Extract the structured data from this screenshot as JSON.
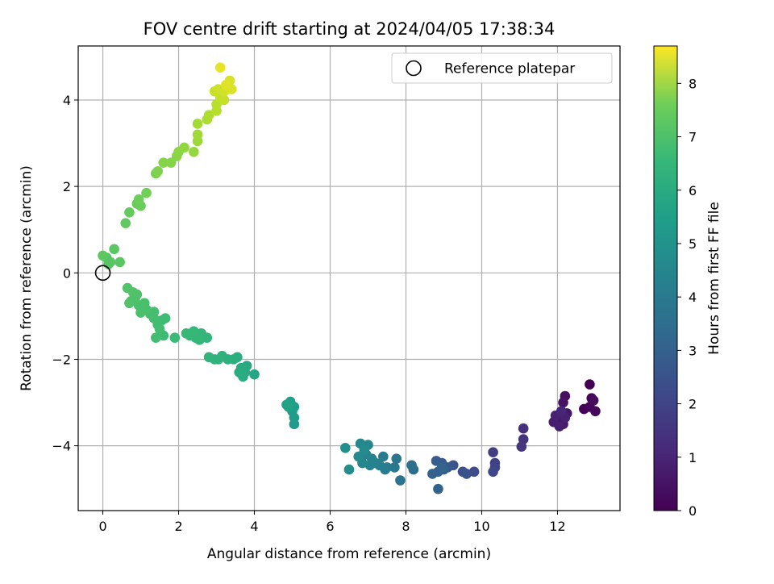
{
  "chart_data": {
    "type": "scatter",
    "title": "FOV centre drift starting at 2024/04/05 17:38:34",
    "xlabel": "Angular distance from reference (arcmin)",
    "ylabel": "Rotation from reference (arcmin)",
    "xlim": [
      -0.65,
      13.65
    ],
    "ylim": [
      -5.5,
      5.25
    ],
    "xticks": [
      "0",
      "2",
      "4",
      "6",
      "8",
      "10",
      "12"
    ],
    "yticks": [
      "−4",
      "−2",
      "0",
      "2",
      "4"
    ],
    "grid": true,
    "legend": {
      "position": "top-right",
      "entries": [
        {
          "label": "Reference platepar",
          "marker": "open-circle",
          "color": "#000000"
        }
      ]
    },
    "colorbar": {
      "label": "Hours from first FF file",
      "min": 0,
      "max": 8.7,
      "ticks": [
        "0",
        "1",
        "2",
        "3",
        "4",
        "5",
        "6",
        "7",
        "8"
      ],
      "colormap": "viridis"
    },
    "reference_point": {
      "x": 0,
      "y": 0
    },
    "points": [
      {
        "x": 12.85,
        "y": -2.58,
        "c": 0.0
      },
      {
        "x": 12.7,
        "y": -3.15,
        "c": 0.05
      },
      {
        "x": 12.9,
        "y": -2.9,
        "c": 0.1
      },
      {
        "x": 12.85,
        "y": -3.1,
        "c": 0.15
      },
      {
        "x": 13.0,
        "y": -3.2,
        "c": 0.2
      },
      {
        "x": 12.95,
        "y": -2.95,
        "c": 0.25
      },
      {
        "x": 12.2,
        "y": -2.85,
        "c": 0.4
      },
      {
        "x": 12.15,
        "y": -3.0,
        "c": 0.45
      },
      {
        "x": 12.25,
        "y": -3.25,
        "c": 0.5
      },
      {
        "x": 12.1,
        "y": -3.3,
        "c": 0.55
      },
      {
        "x": 12.0,
        "y": -3.4,
        "c": 0.6
      },
      {
        "x": 12.15,
        "y": -3.5,
        "c": 0.65
      },
      {
        "x": 11.9,
        "y": -3.45,
        "c": 0.7
      },
      {
        "x": 12.05,
        "y": -3.55,
        "c": 0.75
      },
      {
        "x": 12.2,
        "y": -3.35,
        "c": 0.8
      },
      {
        "x": 11.95,
        "y": -3.3,
        "c": 0.85
      },
      {
        "x": 12.1,
        "y": -3.2,
        "c": 0.9
      },
      {
        "x": 11.1,
        "y": -3.6,
        "c": 1.2
      },
      {
        "x": 11.1,
        "y": -3.85,
        "c": 1.3
      },
      {
        "x": 11.05,
        "y": -4.02,
        "c": 1.4
      },
      {
        "x": 10.3,
        "y": -4.15,
        "c": 1.6
      },
      {
        "x": 10.35,
        "y": -4.4,
        "c": 1.7
      },
      {
        "x": 10.35,
        "y": -4.5,
        "c": 1.8
      },
      {
        "x": 10.3,
        "y": -4.6,
        "c": 1.9
      },
      {
        "x": 9.8,
        "y": -4.6,
        "c": 2.05
      },
      {
        "x": 9.5,
        "y": -4.6,
        "c": 2.15
      },
      {
        "x": 9.6,
        "y": -4.65,
        "c": 2.2
      },
      {
        "x": 9.25,
        "y": -4.45,
        "c": 2.3
      },
      {
        "x": 9.1,
        "y": -4.5,
        "c": 2.4
      },
      {
        "x": 8.95,
        "y": -4.4,
        "c": 2.5
      },
      {
        "x": 8.8,
        "y": -4.35,
        "c": 2.55
      },
      {
        "x": 9.0,
        "y": -4.55,
        "c": 2.6
      },
      {
        "x": 8.85,
        "y": -4.6,
        "c": 2.65
      },
      {
        "x": 8.7,
        "y": -4.65,
        "c": 2.7
      },
      {
        "x": 8.85,
        "y": -5.0,
        "c": 2.75
      },
      {
        "x": 8.95,
        "y": -4.5,
        "c": 2.8
      },
      {
        "x": 8.2,
        "y": -4.55,
        "c": 3.1
      },
      {
        "x": 8.15,
        "y": -4.45,
        "c": 3.15
      },
      {
        "x": 7.85,
        "y": -4.8,
        "c": 3.3
      },
      {
        "x": 7.75,
        "y": -4.3,
        "c": 3.4
      },
      {
        "x": 7.7,
        "y": -4.5,
        "c": 3.45
      },
      {
        "x": 7.5,
        "y": -4.5,
        "c": 3.6
      },
      {
        "x": 7.4,
        "y": -4.25,
        "c": 3.65
      },
      {
        "x": 7.45,
        "y": -4.55,
        "c": 3.7
      },
      {
        "x": 7.3,
        "y": -4.45,
        "c": 3.75
      },
      {
        "x": 7.2,
        "y": -4.4,
        "c": 3.8
      },
      {
        "x": 7.05,
        "y": -4.45,
        "c": 3.85
      },
      {
        "x": 7.1,
        "y": -4.3,
        "c": 3.9
      },
      {
        "x": 6.95,
        "y": -4.2,
        "c": 3.95
      },
      {
        "x": 6.85,
        "y": -4.4,
        "c": 4.0
      },
      {
        "x": 7.0,
        "y": -3.98,
        "c": 4.05
      },
      {
        "x": 6.8,
        "y": -3.95,
        "c": 4.1
      },
      {
        "x": 6.75,
        "y": -4.25,
        "c": 4.15
      },
      {
        "x": 6.9,
        "y": -4.1,
        "c": 4.2
      },
      {
        "x": 6.5,
        "y": -4.55,
        "c": 4.25
      },
      {
        "x": 6.4,
        "y": -4.05,
        "c": 4.3
      },
      {
        "x": 5.05,
        "y": -3.5,
        "c": 4.7
      },
      {
        "x": 5.05,
        "y": -3.35,
        "c": 4.75
      },
      {
        "x": 5.0,
        "y": -3.2,
        "c": 4.8
      },
      {
        "x": 5.05,
        "y": -3.1,
        "c": 4.85
      },
      {
        "x": 4.95,
        "y": -2.98,
        "c": 4.9
      },
      {
        "x": 4.9,
        "y": -3.1,
        "c": 4.95
      },
      {
        "x": 4.85,
        "y": -3.05,
        "c": 5.0
      },
      {
        "x": 4.0,
        "y": -2.35,
        "c": 5.15
      },
      {
        "x": 3.8,
        "y": -2.15,
        "c": 5.2
      },
      {
        "x": 3.75,
        "y": -2.3,
        "c": 5.25
      },
      {
        "x": 3.65,
        "y": -2.2,
        "c": 5.3
      },
      {
        "x": 3.6,
        "y": -2.3,
        "c": 5.35
      },
      {
        "x": 3.7,
        "y": -2.4,
        "c": 5.38
      },
      {
        "x": 3.55,
        "y": -1.95,
        "c": 5.4
      },
      {
        "x": 3.45,
        "y": -2.0,
        "c": 5.45
      },
      {
        "x": 3.3,
        "y": -2.0,
        "c": 5.5
      },
      {
        "x": 3.15,
        "y": -1.92,
        "c": 5.55
      },
      {
        "x": 3.05,
        "y": -2.0,
        "c": 5.6
      },
      {
        "x": 2.95,
        "y": -2.0,
        "c": 5.62
      },
      {
        "x": 2.8,
        "y": -1.95,
        "c": 5.65
      },
      {
        "x": 2.75,
        "y": -1.5,
        "c": 5.7
      },
      {
        "x": 2.6,
        "y": -1.4,
        "c": 5.72
      },
      {
        "x": 2.55,
        "y": -1.55,
        "c": 5.75
      },
      {
        "x": 2.45,
        "y": -1.5,
        "c": 5.78
      },
      {
        "x": 2.4,
        "y": -1.35,
        "c": 5.8
      },
      {
        "x": 2.3,
        "y": -1.45,
        "c": 5.82
      },
      {
        "x": 2.2,
        "y": -1.4,
        "c": 5.85
      },
      {
        "x": 1.9,
        "y": -1.5,
        "c": 5.9
      },
      {
        "x": 1.6,
        "y": -1.45,
        "c": 5.93
      },
      {
        "x": 1.65,
        "y": -1.05,
        "c": 5.95
      },
      {
        "x": 1.55,
        "y": -1.1,
        "c": 5.97
      },
      {
        "x": 1.45,
        "y": -1.2,
        "c": 6.0
      },
      {
        "x": 1.4,
        "y": -1.5,
        "c": 6.02
      },
      {
        "x": 1.5,
        "y": -1.3,
        "c": 6.04
      },
      {
        "x": 1.35,
        "y": -1.05,
        "c": 6.06
      },
      {
        "x": 1.35,
        "y": -0.9,
        "c": 6.08
      },
      {
        "x": 1.25,
        "y": -0.95,
        "c": 6.1
      },
      {
        "x": 1.15,
        "y": -0.85,
        "c": 6.12
      },
      {
        "x": 1.1,
        "y": -0.7,
        "c": 6.14
      },
      {
        "x": 1.0,
        "y": -0.92,
        "c": 6.16
      },
      {
        "x": 0.95,
        "y": -0.75,
        "c": 6.18
      },
      {
        "x": 0.9,
        "y": -0.5,
        "c": 6.2
      },
      {
        "x": 0.85,
        "y": -0.6,
        "c": 6.22
      },
      {
        "x": 0.75,
        "y": -0.65,
        "c": 6.24
      },
      {
        "x": 0.8,
        "y": -0.45,
        "c": 6.26
      },
      {
        "x": 0.7,
        "y": -0.7,
        "c": 6.28
      },
      {
        "x": 0.65,
        "y": -0.35,
        "c": 6.3
      },
      {
        "x": 0.1,
        "y": 0.35,
        "c": 6.35
      },
      {
        "x": 0.2,
        "y": 0.25,
        "c": 6.38
      },
      {
        "x": 0.15,
        "y": 0.2,
        "c": 6.4
      },
      {
        "x": 0.3,
        "y": 0.55,
        "c": 6.42
      },
      {
        "x": 0.45,
        "y": 0.25,
        "c": 6.45
      },
      {
        "x": 0.0,
        "y": 0.4,
        "c": 6.48
      },
      {
        "x": 0.6,
        "y": 1.15,
        "c": 6.55
      },
      {
        "x": 0.7,
        "y": 1.4,
        "c": 6.6
      },
      {
        "x": 0.9,
        "y": 1.6,
        "c": 6.65
      },
      {
        "x": 1.0,
        "y": 1.55,
        "c": 6.7
      },
      {
        "x": 0.95,
        "y": 1.7,
        "c": 6.75
      },
      {
        "x": 1.15,
        "y": 1.85,
        "c": 6.8
      },
      {
        "x": 1.4,
        "y": 2.3,
        "c": 6.95
      },
      {
        "x": 1.45,
        "y": 2.35,
        "c": 7.0
      },
      {
        "x": 1.6,
        "y": 2.55,
        "c": 7.05
      },
      {
        "x": 1.8,
        "y": 2.55,
        "c": 7.1
      },
      {
        "x": 1.95,
        "y": 2.7,
        "c": 7.15
      },
      {
        "x": 2.0,
        "y": 2.8,
        "c": 7.2
      },
      {
        "x": 2.15,
        "y": 2.9,
        "c": 7.25
      },
      {
        "x": 2.4,
        "y": 2.8,
        "c": 7.3
      },
      {
        "x": 2.5,
        "y": 3.05,
        "c": 7.4
      },
      {
        "x": 2.5,
        "y": 3.2,
        "c": 7.45
      },
      {
        "x": 2.5,
        "y": 3.45,
        "c": 7.5
      },
      {
        "x": 2.75,
        "y": 3.55,
        "c": 7.6
      },
      {
        "x": 2.8,
        "y": 3.65,
        "c": 7.65
      },
      {
        "x": 3.0,
        "y": 3.75,
        "c": 7.75
      },
      {
        "x": 3.0,
        "y": 3.9,
        "c": 7.8
      },
      {
        "x": 3.1,
        "y": 4.05,
        "c": 7.9
      },
      {
        "x": 3.2,
        "y": 4.0,
        "c": 7.95
      },
      {
        "x": 2.95,
        "y": 4.2,
        "c": 8.0
      },
      {
        "x": 3.05,
        "y": 4.25,
        "c": 8.05
      },
      {
        "x": 3.2,
        "y": 4.2,
        "c": 8.1
      },
      {
        "x": 3.3,
        "y": 4.25,
        "c": 8.15
      },
      {
        "x": 3.35,
        "y": 4.45,
        "c": 8.2
      },
      {
        "x": 3.4,
        "y": 4.25,
        "c": 8.25
      },
      {
        "x": 3.25,
        "y": 4.35,
        "c": 8.3
      },
      {
        "x": 3.1,
        "y": 4.75,
        "c": 8.4
      }
    ]
  }
}
